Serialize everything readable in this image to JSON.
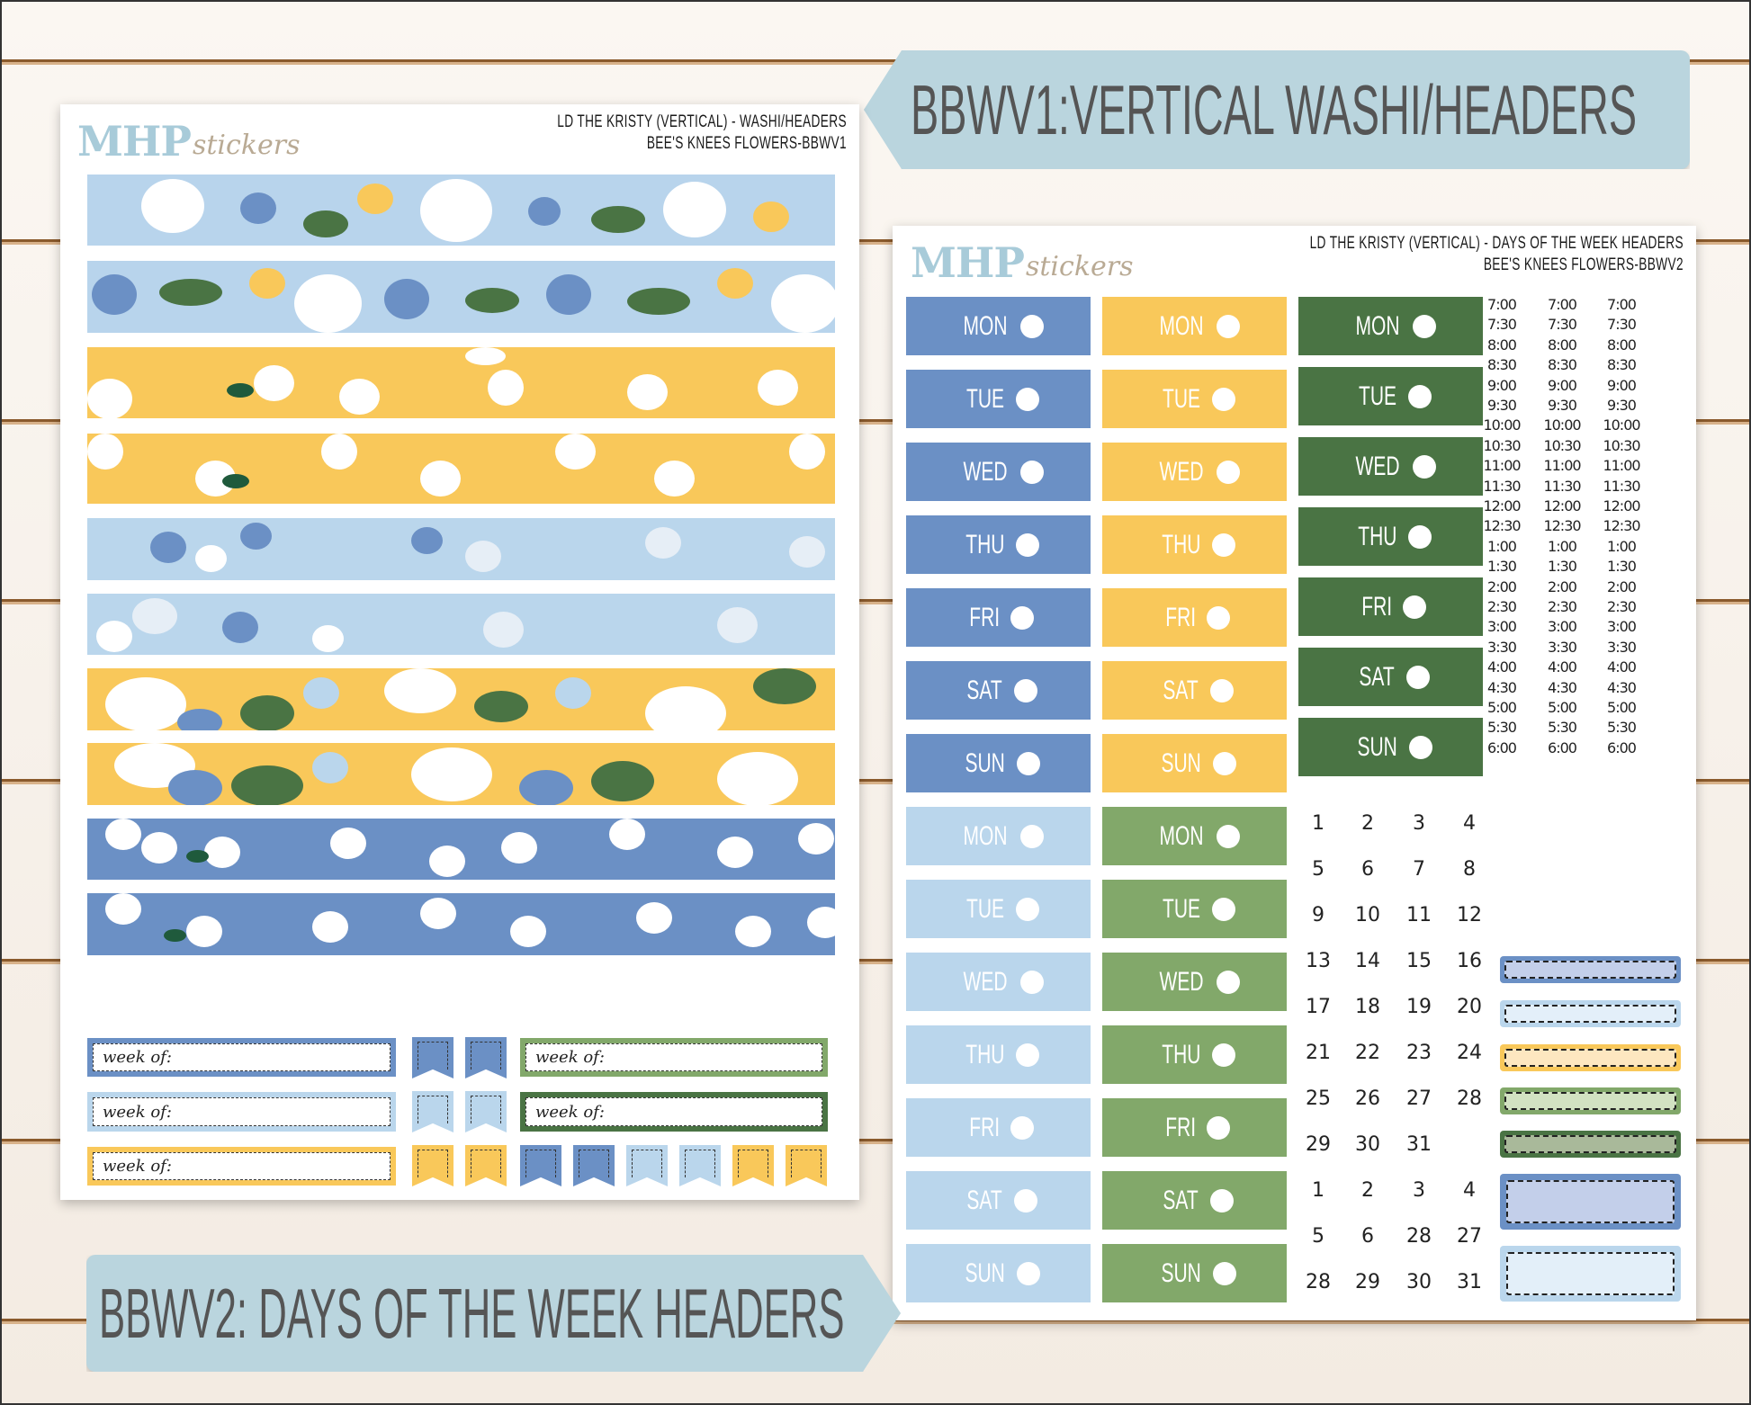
{
  "banners": {
    "top": "BBWV1:VERTICAL WASHI/HEADERS",
    "bottom": "BBWV2: DAYS OF THE WEEK HEADERS"
  },
  "colors": {
    "blue": "#6b90c5",
    "yellow": "#f9c85a",
    "dark_green": "#4a7444",
    "light_blue": "#bad6ec",
    "green": "#82a86a",
    "banner": "#bad5de",
    "logo_mhp": "#a8cbd9",
    "logo_stickers": "#b9aa94"
  },
  "sheet1": {
    "logo": {
      "mhp": "MHP",
      "stickers": "stickers"
    },
    "title_line1": "LD THE KRISTY (VERTICAL) - WASHI/HEADERS",
    "title_line2": "BEE'S KNEES FLOWERS-BBWV1",
    "washi_strips": [
      {
        "pattern": "light blue floral with bees"
      },
      {
        "pattern": "light blue floral with bees"
      },
      {
        "pattern": "yellow with white flowers"
      },
      {
        "pattern": "yellow with white flowers"
      },
      {
        "pattern": "light blue with blue flowers"
      },
      {
        "pattern": "light blue with blue flowers"
      },
      {
        "pattern": "yellow floral with bees"
      },
      {
        "pattern": "yellow floral with bees"
      },
      {
        "pattern": "blue with white flowers"
      },
      {
        "pattern": "blue with white flowers"
      }
    ],
    "week_of_label": "week of:"
  },
  "sheet2": {
    "logo": {
      "mhp": "MHP",
      "stickers": "stickers"
    },
    "title_line1": "LD THE KRISTY (VERTICAL) - DAYS OF THE WEEK HEADERS",
    "title_line2": "BEE'S KNEES FLOWERS-BBWV2",
    "days": [
      "MON",
      "TUE",
      "WED",
      "THU",
      "FRI",
      "SAT",
      "SUN"
    ],
    "times": [
      "7:00",
      "7:30",
      "8:00",
      "8:30",
      "9:00",
      "9:30",
      "10:00",
      "10:30",
      "11:00",
      "11:30",
      "12:00",
      "12:30",
      "1:00",
      "1:30",
      "2:00",
      "2:30",
      "3:00",
      "3:30",
      "4:00",
      "4:30",
      "5:00",
      "5:30",
      "6:00"
    ],
    "numbers": [
      [
        "1",
        "2",
        "3",
        "4"
      ],
      [
        "5",
        "6",
        "7",
        "8"
      ],
      [
        "9",
        "10",
        "11",
        "12"
      ],
      [
        "13",
        "14",
        "15",
        "16"
      ],
      [
        "17",
        "18",
        "19",
        "20"
      ],
      [
        "21",
        "22",
        "23",
        "24"
      ],
      [
        "25",
        "26",
        "27",
        "28"
      ],
      [
        "29",
        "30",
        "31",
        ""
      ],
      [
        "1",
        "2",
        "3",
        "4"
      ],
      [
        "5",
        "6",
        "28",
        "27"
      ],
      [
        "28",
        "29",
        "30",
        "31"
      ]
    ]
  }
}
